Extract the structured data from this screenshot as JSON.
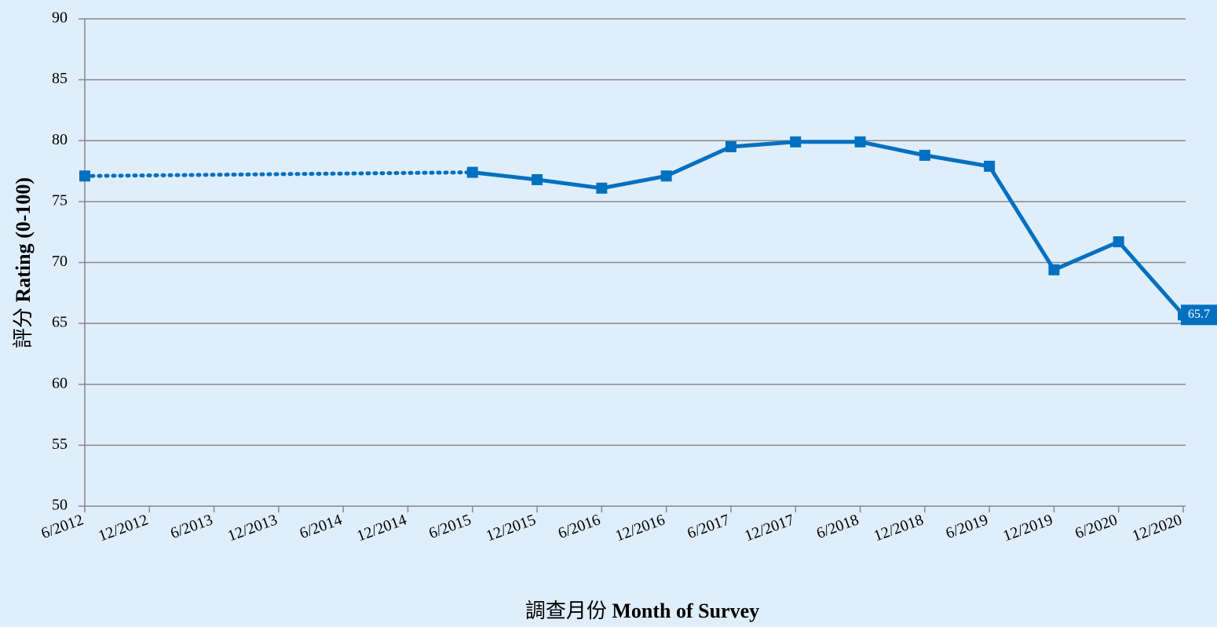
{
  "chart_data": {
    "type": "line",
    "x_label": [
      "調查月份",
      "Month of Survey"
    ],
    "y_label": [
      "評分",
      "Rating (0-100)"
    ],
    "categories": [
      "6/2012",
      "12/2012",
      "6/2013",
      "12/2013",
      "6/2014",
      "12/2014",
      "6/2015",
      "12/2015",
      "6/2016",
      "12/2016",
      "6/2017",
      "12/2017",
      "6/2018",
      "12/2018",
      "6/2019",
      "12/2019",
      "6/2020",
      "12/2020"
    ],
    "series": [
      {
        "color": "#0070c0",
        "values": [
          77.1,
          null,
          null,
          null,
          null,
          null,
          77.4,
          76.8,
          76.1,
          77.1,
          79.5,
          79.9,
          79.9,
          78.8,
          77.9,
          69.4,
          71.7,
          65.7
        ]
      }
    ],
    "gap_style": "dotted",
    "labeled_points": [
      17
    ],
    "ylim": [
      50,
      90
    ],
    "yticks": [
      50,
      55,
      60,
      65,
      70,
      75,
      80,
      85,
      90
    ],
    "grid": true
  }
}
